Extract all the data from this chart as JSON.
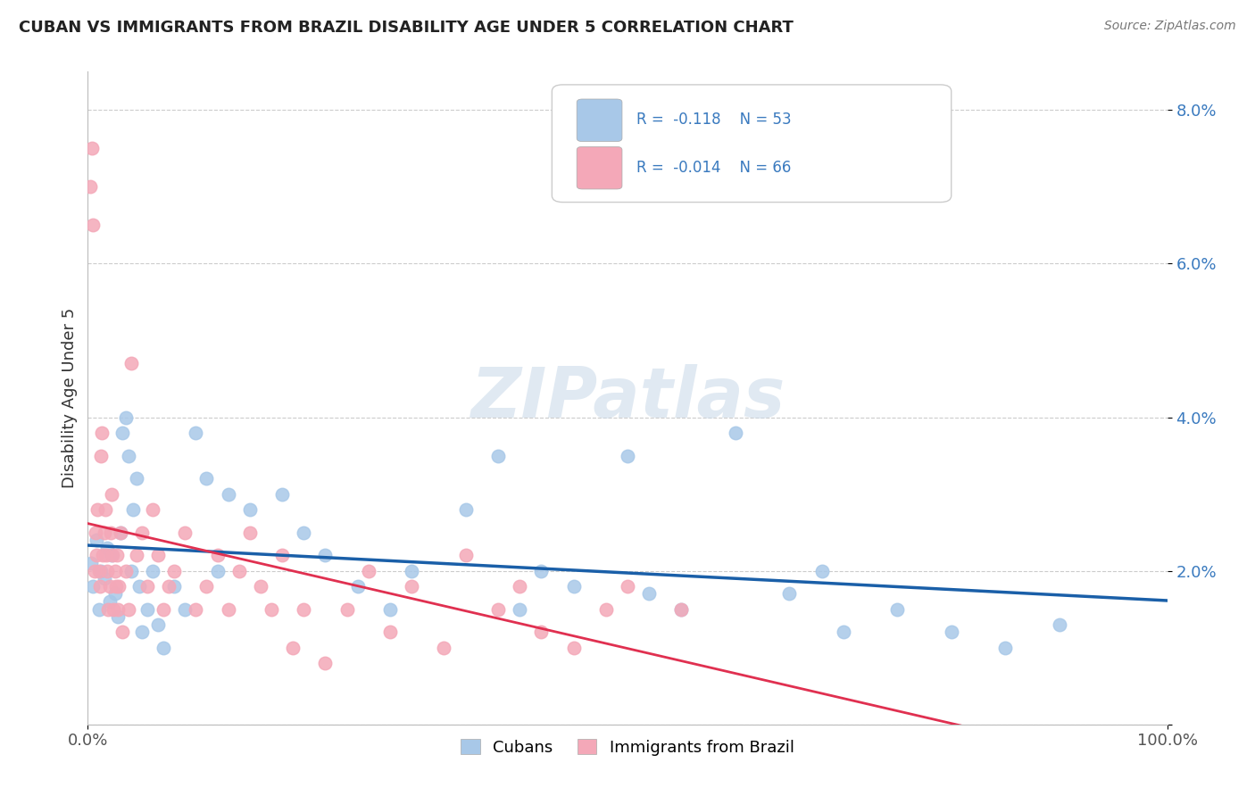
{
  "title": "CUBAN VS IMMIGRANTS FROM BRAZIL DISABILITY AGE UNDER 5 CORRELATION CHART",
  "source": "Source: ZipAtlas.com",
  "ylabel": "Disability Age Under 5",
  "legend_cubans": "Cubans",
  "legend_brazil": "Immigrants from Brazil",
  "cubans_R": "-0.118",
  "cubans_N": "53",
  "brazil_R": "-0.014",
  "brazil_N": "66",
  "cubans_color": "#a8c8e8",
  "cubans_line_color": "#1a5fa8",
  "brazil_color": "#f4a8b8",
  "brazil_line_color": "#e03050",
  "watermark": "ZIPatlas",
  "xlim": [
    0,
    100
  ],
  "ylim": [
    0,
    8.5
  ],
  "cubans_x": [
    0.3,
    0.5,
    0.8,
    1.0,
    1.2,
    1.5,
    1.8,
    2.0,
    2.2,
    2.5,
    2.8,
    3.0,
    3.2,
    3.5,
    3.8,
    4.0,
    4.2,
    4.5,
    4.8,
    5.0,
    5.5,
    6.0,
    6.5,
    7.0,
    8.0,
    9.0,
    10.0,
    11.0,
    12.0,
    13.0,
    15.0,
    18.0,
    20.0,
    22.0,
    25.0,
    28.0,
    30.0,
    35.0,
    38.0,
    40.0,
    42.0,
    45.0,
    50.0,
    52.0,
    55.0,
    60.0,
    65.0,
    68.0,
    70.0,
    75.0,
    80.0,
    85.0,
    90.0
  ],
  "cubans_y": [
    2.1,
    1.8,
    2.4,
    1.5,
    2.0,
    1.9,
    2.3,
    1.6,
    2.2,
    1.7,
    1.4,
    2.5,
    3.8,
    4.0,
    3.5,
    2.0,
    2.8,
    3.2,
    1.8,
    1.2,
    1.5,
    2.0,
    1.3,
    1.0,
    1.8,
    1.5,
    3.8,
    3.2,
    2.0,
    3.0,
    2.8,
    3.0,
    2.5,
    2.2,
    1.8,
    1.5,
    2.0,
    2.8,
    3.5,
    1.5,
    2.0,
    1.8,
    3.5,
    1.7,
    1.5,
    3.8,
    1.7,
    2.0,
    1.2,
    1.5,
    1.2,
    1.0,
    1.3
  ],
  "brazil_x": [
    0.2,
    0.4,
    0.5,
    0.6,
    0.7,
    0.8,
    0.9,
    1.0,
    1.1,
    1.2,
    1.3,
    1.4,
    1.5,
    1.6,
    1.7,
    1.8,
    1.9,
    2.0,
    2.1,
    2.2,
    2.3,
    2.4,
    2.5,
    2.6,
    2.7,
    2.8,
    2.9,
    3.0,
    3.2,
    3.5,
    3.8,
    4.0,
    4.5,
    5.0,
    5.5,
    6.0,
    6.5,
    7.0,
    7.5,
    8.0,
    9.0,
    10.0,
    11.0,
    12.0,
    13.0,
    14.0,
    15.0,
    16.0,
    17.0,
    18.0,
    19.0,
    20.0,
    22.0,
    24.0,
    26.0,
    28.0,
    30.0,
    33.0,
    35.0,
    38.0,
    40.0,
    42.0,
    45.0,
    48.0,
    50.0,
    55.0
  ],
  "brazil_y": [
    7.0,
    7.5,
    6.5,
    2.0,
    2.5,
    2.2,
    2.8,
    2.0,
    1.8,
    3.5,
    3.8,
    2.2,
    2.5,
    2.8,
    2.2,
    2.0,
    1.5,
    1.8,
    2.5,
    3.0,
    2.2,
    1.5,
    2.0,
    1.8,
    2.2,
    1.5,
    1.8,
    2.5,
    1.2,
    2.0,
    1.5,
    4.7,
    2.2,
    2.5,
    1.8,
    2.8,
    2.2,
    1.5,
    1.8,
    2.0,
    2.5,
    1.5,
    1.8,
    2.2,
    1.5,
    2.0,
    2.5,
    1.8,
    1.5,
    2.2,
    1.0,
    1.5,
    0.8,
    1.5,
    2.0,
    1.2,
    1.8,
    1.0,
    2.2,
    1.5,
    1.8,
    1.2,
    1.0,
    1.5,
    1.8,
    1.5
  ]
}
